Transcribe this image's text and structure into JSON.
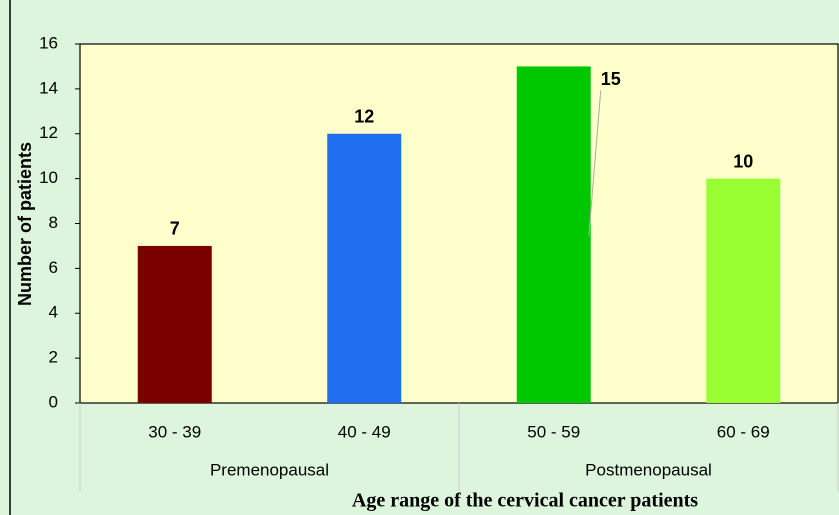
{
  "chart_data": {
    "type": "bar",
    "categories": [
      "30 - 39",
      "40 - 49",
      "50 - 59",
      "60 - 69"
    ],
    "groups": [
      {
        "name": "Premenopausal",
        "count": 2
      },
      {
        "name": "Postmenopausal",
        "count": 2
      }
    ],
    "values": [
      7,
      12,
      15,
      10
    ],
    "colors": [
      "#7a0000",
      "#1f6ff0",
      "#00c800",
      "#99ff33"
    ],
    "ylim": [
      0,
      16
    ],
    "yticks": [
      0,
      2,
      4,
      6,
      8,
      10,
      12,
      14,
      16
    ],
    "y_label": "Number of patients",
    "x_label": "Age range of the cervical cancer patients",
    "grid": false
  }
}
